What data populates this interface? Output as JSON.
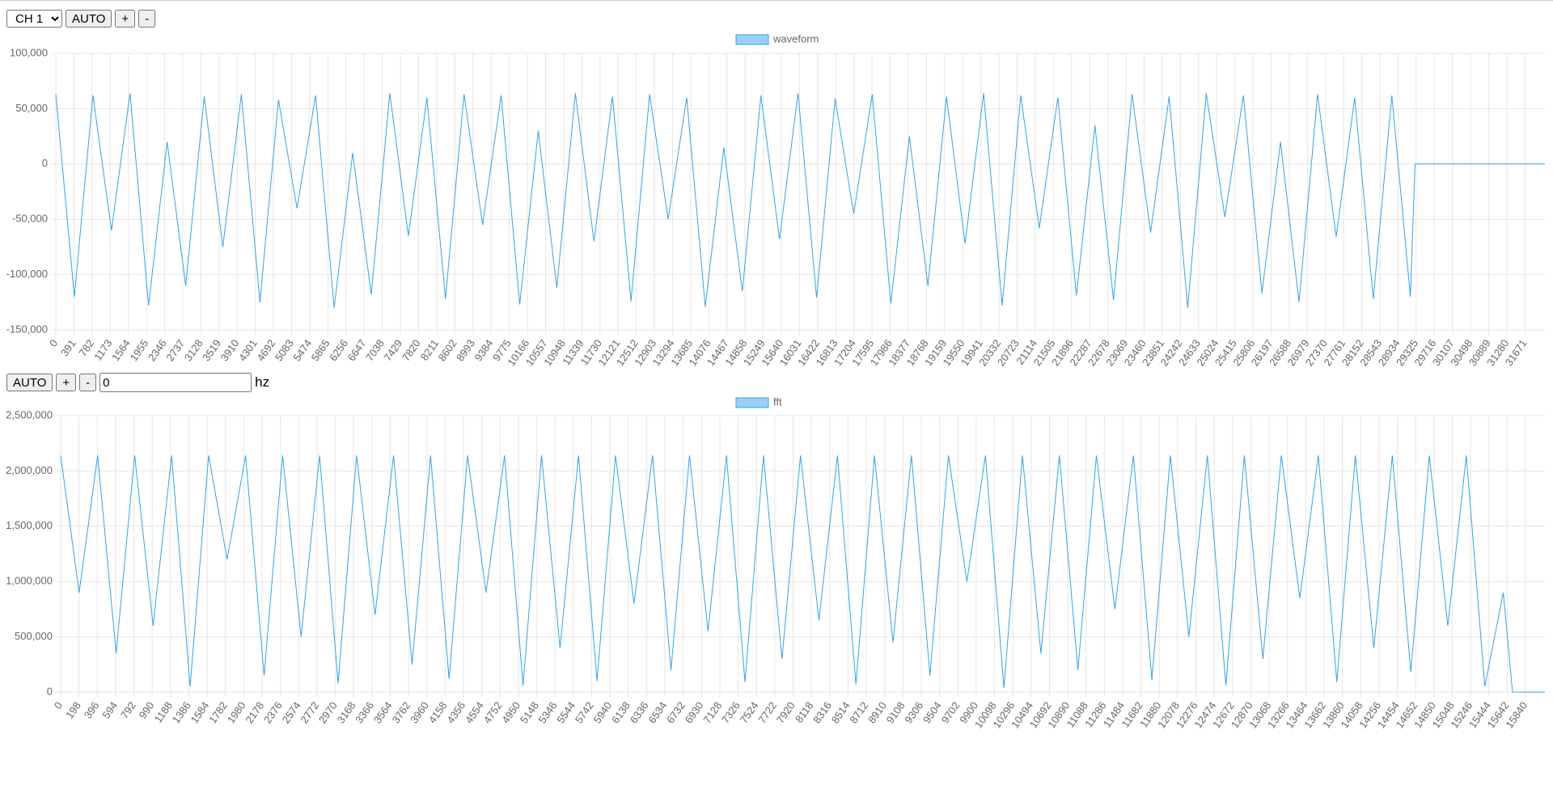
{
  "controls": {
    "channel": "CH 1",
    "auto": "AUTO",
    "plus": "+",
    "minus": "-"
  },
  "fft_controls": {
    "auto": "AUTO",
    "plus": "+",
    "minus": "-",
    "input": "0",
    "unit": "hz"
  },
  "chart_data": [
    {
      "type": "line",
      "legend": "waveform",
      "color": "#36a2eb",
      "grid": true,
      "xlim": [
        0,
        32100
      ],
      "ylim": [
        -150000,
        100000
      ],
      "yticks": [
        {
          "value": -150000,
          "label": "-150,000"
        },
        {
          "value": -100000,
          "label": "-100,000"
        },
        {
          "value": -50000,
          "label": "-50,000"
        },
        0,
        {
          "value": 50000,
          "label": "50,000"
        },
        {
          "value": 100000,
          "label": "100,000"
        }
      ],
      "xticks": [
        0,
        391,
        782,
        1173,
        1564,
        1955,
        2346,
        2737,
        3128,
        3519,
        3910,
        4301,
        4692,
        5083,
        5474,
        5865,
        6256,
        6647,
        7038,
        7429,
        7820,
        8211,
        8602,
        8993,
        9384,
        9775,
        10166,
        10557,
        10948,
        11339,
        11730,
        12121,
        12512,
        12903,
        13294,
        13685,
        14076,
        14467,
        14858,
        15249,
        15640,
        16031,
        16422,
        16813,
        17204,
        17595,
        17986,
        18377,
        18768,
        19159,
        19550,
        19941,
        20332,
        20723,
        21114,
        21505,
        21896,
        22287,
        22678,
        23069,
        23460,
        23851,
        24242,
        24633,
        25024,
        25415,
        25806,
        26197,
        26588,
        26979,
        27370,
        27761,
        28152,
        28543,
        28934,
        29325,
        29716,
        30107,
        30498,
        30889,
        31280,
        31671
      ],
      "x": [
        0,
        400,
        800,
        1200,
        1600,
        2000,
        2400,
        2800,
        3200,
        3600,
        4000,
        4400,
        4800,
        5200,
        5600,
        6000,
        6400,
        6800,
        7200,
        7600,
        8000,
        8400,
        8800,
        9200,
        9600,
        10000,
        10400,
        10800,
        11200,
        11600,
        12000,
        12400,
        12800,
        13200,
        13600,
        14000,
        14400,
        14800,
        15200,
        15600,
        16000,
        16400,
        16800,
        17200,
        17600,
        18000,
        18400,
        18800,
        19200,
        19600,
        20000,
        20400,
        20800,
        21200,
        21600,
        22000,
        22400,
        22800,
        23200,
        23600,
        24000,
        24400,
        24800,
        25200,
        25600,
        26000,
        26400,
        26800,
        27200,
        27600,
        28000,
        28400,
        28800,
        29200,
        29300,
        32100
      ],
      "values": [
        63000,
        -120000,
        62000,
        -60000,
        64000,
        -128000,
        20000,
        -110000,
        61000,
        -75000,
        63000,
        -125000,
        58000,
        -40000,
        62000,
        -130000,
        10000,
        -118000,
        64000,
        -65000,
        60000,
        -122000,
        63000,
        -55000,
        62000,
        -127000,
        30000,
        -112000,
        64000,
        -70000,
        61000,
        -124000,
        63000,
        -50000,
        60000,
        -129000,
        15000,
        -115000,
        62000,
        -68000,
        64000,
        -121000,
        59000,
        -45000,
        63000,
        -126000,
        25000,
        -110000,
        61000,
        -72000,
        64000,
        -128000,
        62000,
        -58000,
        60000,
        -119000,
        35000,
        -123000,
        63000,
        -62000,
        61000,
        -130000,
        64000,
        -48000,
        62000,
        -117000,
        20000,
        -125000,
        63000,
        -66000,
        60000,
        -122000,
        62000,
        -120000,
        0,
        0
      ]
    },
    {
      "type": "line",
      "legend": "fft",
      "color": "#36a2eb",
      "grid": true,
      "xlim": [
        0,
        16050
      ],
      "ylim": [
        0,
        2500000
      ],
      "yticks": [
        0,
        {
          "value": 500000,
          "label": "500,000"
        },
        {
          "value": 1000000,
          "label": "1,000,000"
        },
        {
          "value": 1500000,
          "label": "1,500,000"
        },
        {
          "value": 2000000,
          "label": "2,000,000"
        },
        {
          "value": 2500000,
          "label": "2,500,000"
        }
      ],
      "xticks": [
        0,
        198,
        396,
        594,
        792,
        990,
        1188,
        1386,
        1584,
        1782,
        1980,
        2178,
        2376,
        2574,
        2772,
        2970,
        3168,
        3366,
        3564,
        3762,
        3960,
        4158,
        4356,
        4554,
        4752,
        4950,
        5148,
        5346,
        5544,
        5742,
        5940,
        6138,
        6336,
        6534,
        6732,
        6930,
        7128,
        7326,
        7524,
        7722,
        7920,
        8118,
        8316,
        8514,
        8712,
        8910,
        9108,
        9306,
        9504,
        9702,
        9900,
        10098,
        10296,
        10494,
        10692,
        10890,
        11088,
        11286,
        11484,
        11682,
        11880,
        12078,
        12276,
        12474,
        12672,
        12870,
        13068,
        13266,
        13464,
        13662,
        13860,
        14058,
        14256,
        14454,
        14652,
        14850,
        15048,
        15246,
        15444,
        15642,
        15840
      ],
      "x": [
        0,
        200,
        400,
        600,
        800,
        1000,
        1200,
        1400,
        1600,
        1800,
        2000,
        2200,
        2400,
        2600,
        2800,
        3000,
        3200,
        3400,
        3600,
        3800,
        4000,
        4200,
        4400,
        4600,
        4800,
        5000,
        5200,
        5400,
        5600,
        5800,
        6000,
        6200,
        6400,
        6600,
        6800,
        7000,
        7200,
        7400,
        7600,
        7800,
        8000,
        8200,
        8400,
        8600,
        8800,
        9000,
        9200,
        9400,
        9600,
        9800,
        10000,
        10200,
        10400,
        10600,
        10800,
        11000,
        11200,
        11400,
        11600,
        11800,
        12000,
        12200,
        12400,
        12600,
        12800,
        13000,
        13200,
        13400,
        13600,
        13800,
        14000,
        14200,
        14400,
        14600,
        14800,
        15000,
        15200,
        15400,
        15600,
        15700,
        16050
      ],
      "values": [
        2140000,
        900000,
        2140000,
        350000,
        2140000,
        600000,
        2140000,
        50000,
        2140000,
        1200000,
        2140000,
        150000,
        2140000,
        500000,
        2140000,
        80000,
        2140000,
        700000,
        2140000,
        250000,
        2140000,
        120000,
        2140000,
        900000,
        2140000,
        60000,
        2140000,
        400000,
        2140000,
        100000,
        2140000,
        800000,
        2140000,
        200000,
        2140000,
        550000,
        2140000,
        90000,
        2140000,
        300000,
        2140000,
        650000,
        2140000,
        70000,
        2140000,
        450000,
        2140000,
        150000,
        2140000,
        1000000,
        2140000,
        40000,
        2140000,
        350000,
        2140000,
        200000,
        2140000,
        750000,
        2140000,
        110000,
        2140000,
        500000,
        2140000,
        60000,
        2140000,
        300000,
        2140000,
        850000,
        2140000,
        90000,
        2140000,
        400000,
        2140000,
        180000,
        2140000,
        600000,
        2140000,
        50000,
        900000,
        0,
        0
      ]
    }
  ]
}
